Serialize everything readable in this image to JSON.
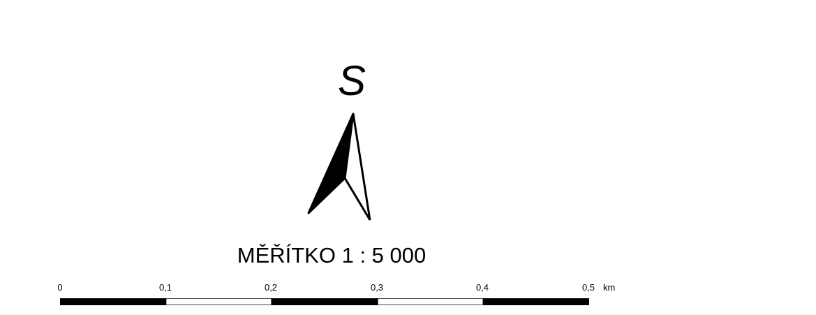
{
  "north_arrow": {
    "letter": "S",
    "icon": "north-arrow-icon"
  },
  "scale": {
    "title": "MĚŘÍTKO 1 : 5 000",
    "unit": "km",
    "ticks": [
      "0",
      "0,1",
      "0,2",
      "0,3",
      "0,4",
      "0,5"
    ],
    "segment_colors": [
      "#000000",
      "#ffffff",
      "#000000",
      "#ffffff",
      "#000000"
    ]
  }
}
